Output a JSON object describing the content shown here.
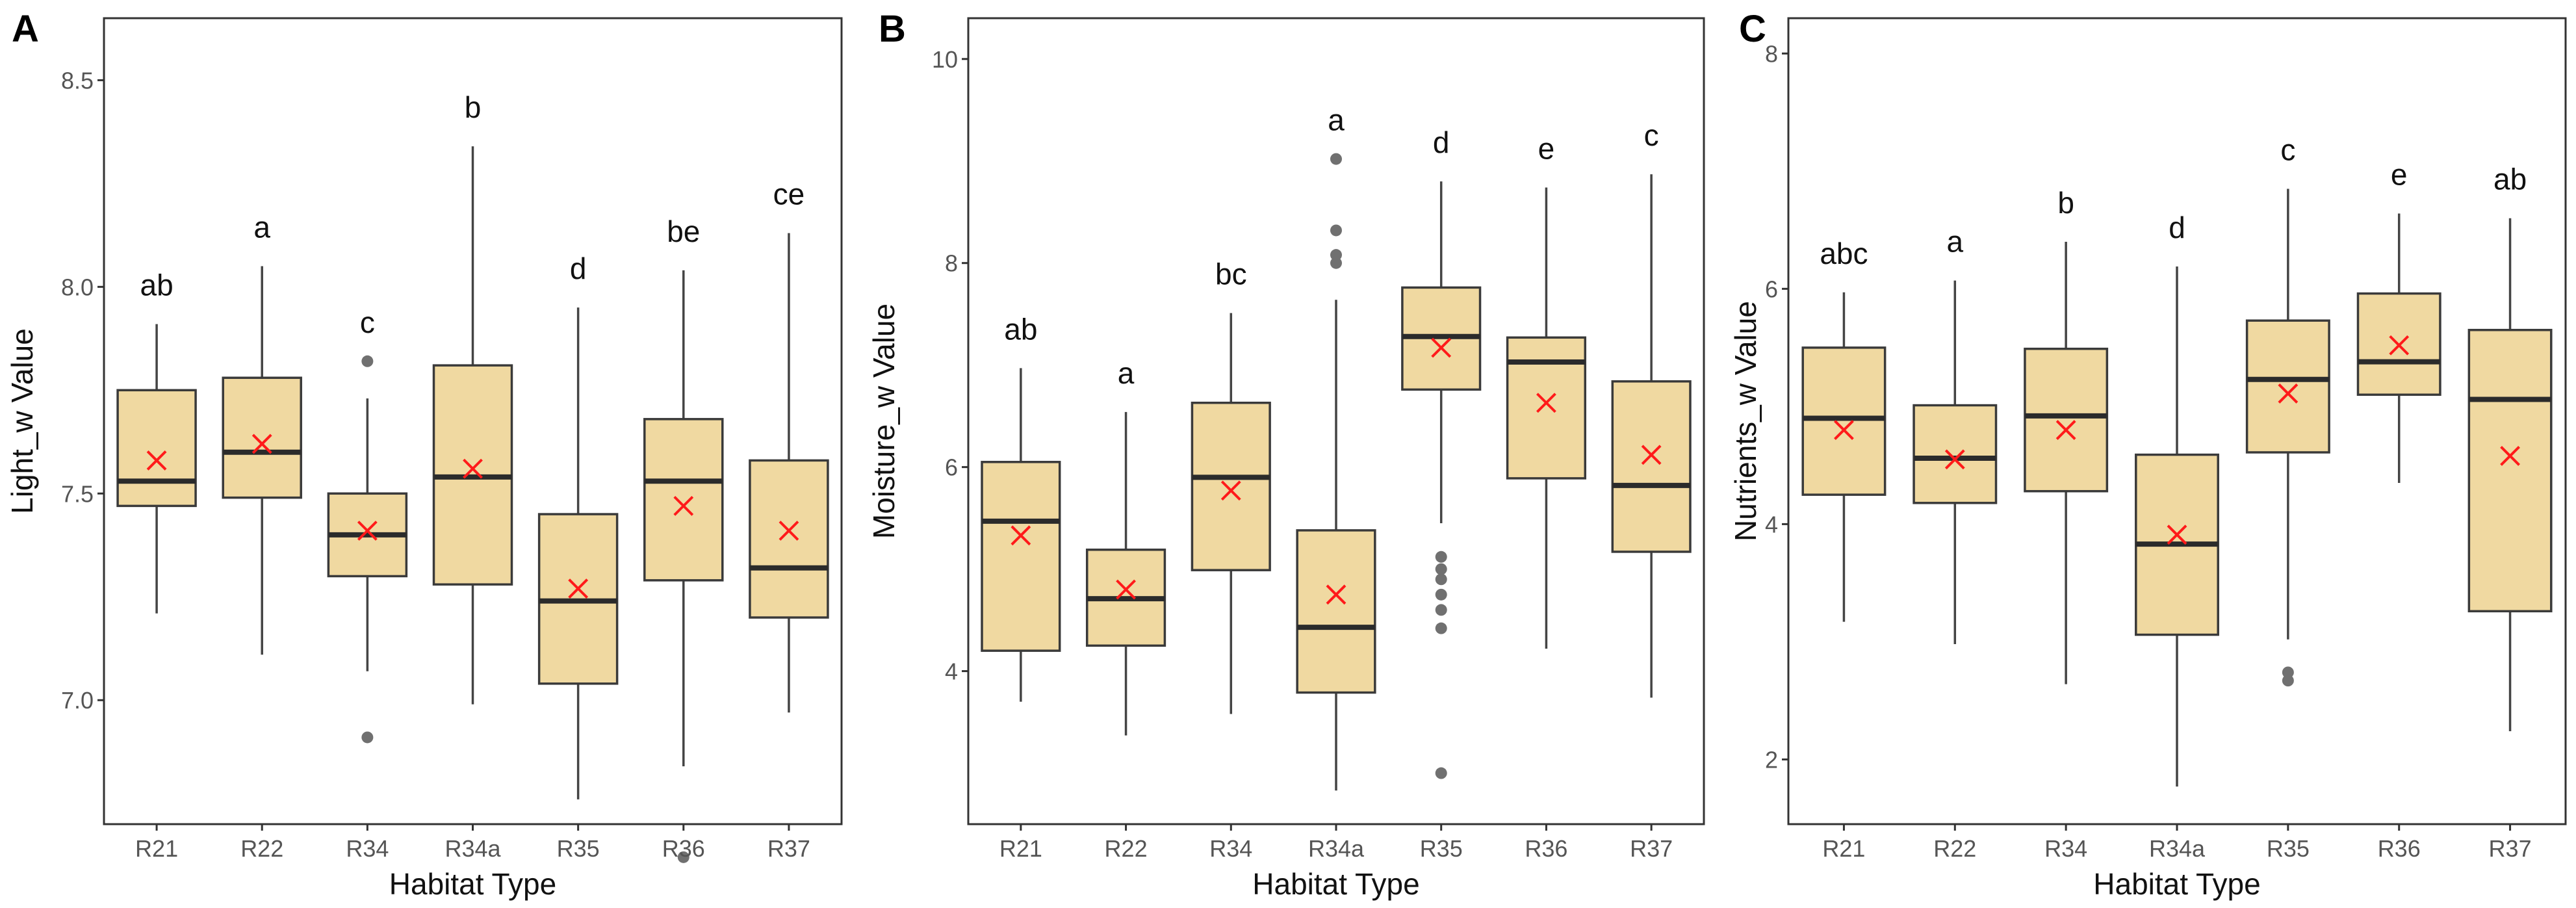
{
  "figure": {
    "box_fill": "#F0D9A1",
    "box_stroke": "#3a3a3a",
    "median_color": "#2b2b2b",
    "whisker_color": "#444444",
    "mean_marker_color": "#FF1A1A",
    "outlier_color": "#707070"
  },
  "chart_data": [
    {
      "type": "box",
      "panel_letter": "A",
      "xlabel": "Habitat Type",
      "ylabel": "Light_w Value",
      "ylim": [
        6.7,
        8.65
      ],
      "yticks": [
        7.0,
        7.5,
        8.0,
        8.5
      ],
      "ytick_labels": [
        "7.0",
        "7.5",
        "8.0",
        "8.5"
      ],
      "categories": [
        "R21",
        "R22",
        "R34",
        "R34a",
        "R35",
        "R36",
        "R37"
      ],
      "boxes": [
        {
          "whisker_low": 7.21,
          "q1": 7.47,
          "median": 7.53,
          "q3": 7.75,
          "whisker_high": 7.91,
          "mean": 7.58,
          "outliers": [],
          "letter": "ab"
        },
        {
          "whisker_low": 7.11,
          "q1": 7.49,
          "median": 7.6,
          "q3": 7.78,
          "whisker_high": 8.05,
          "mean": 7.62,
          "outliers": [],
          "letter": "a"
        },
        {
          "whisker_low": 7.07,
          "q1": 7.3,
          "median": 7.4,
          "q3": 7.5,
          "whisker_high": 7.73,
          "mean": 7.41,
          "outliers": [
            6.91,
            7.82
          ],
          "letter": "c"
        },
        {
          "whisker_low": 6.99,
          "q1": 7.28,
          "median": 7.54,
          "q3": 7.81,
          "whisker_high": 8.34,
          "mean": 7.56,
          "outliers": [],
          "letter": "b"
        },
        {
          "whisker_low": 6.76,
          "q1": 7.04,
          "median": 7.24,
          "q3": 7.45,
          "whisker_high": 7.95,
          "mean": 7.27,
          "outliers": [],
          "letter": "d"
        },
        {
          "whisker_low": 6.84,
          "q1": 7.29,
          "median": 7.53,
          "q3": 7.68,
          "whisker_high": 8.04,
          "mean": 7.47,
          "outliers": [
            6.62
          ],
          "letter": "be"
        },
        {
          "whisker_low": 6.97,
          "q1": 7.2,
          "median": 7.32,
          "q3": 7.58,
          "whisker_high": 8.13,
          "mean": 7.41,
          "outliers": [],
          "letter": "ce"
        }
      ]
    },
    {
      "type": "box",
      "panel_letter": "B",
      "xlabel": "Habitat Type",
      "ylabel": "Moisture_w Value",
      "ylim": [
        2.5,
        10.4
      ],
      "yticks": [
        4,
        6,
        8,
        10
      ],
      "ytick_labels": [
        "4",
        "6",
        "8",
        "10"
      ],
      "categories": [
        "R21",
        "R22",
        "R34",
        "R34a",
        "R35",
        "R36",
        "R37"
      ],
      "boxes": [
        {
          "whisker_low": 3.7,
          "q1": 4.2,
          "median": 5.47,
          "q3": 6.05,
          "whisker_high": 6.97,
          "mean": 5.33,
          "outliers": [],
          "letter": "ab"
        },
        {
          "whisker_low": 3.37,
          "q1": 4.25,
          "median": 4.71,
          "q3": 5.19,
          "whisker_high": 6.54,
          "mean": 4.8,
          "outliers": [],
          "letter": "a"
        },
        {
          "whisker_low": 3.58,
          "q1": 4.99,
          "median": 5.9,
          "q3": 6.63,
          "whisker_high": 7.51,
          "mean": 5.77,
          "outliers": [],
          "letter": "bc"
        },
        {
          "whisker_low": 2.83,
          "q1": 3.79,
          "median": 4.43,
          "q3": 5.38,
          "whisker_high": 7.64,
          "mean": 4.75,
          "outliers": [
            8.0,
            8.08,
            8.32,
            9.02
          ],
          "letter": "a"
        },
        {
          "whisker_low": 5.45,
          "q1": 6.76,
          "median": 7.28,
          "q3": 7.76,
          "whisker_high": 8.8,
          "mean": 7.17,
          "outliers": [
            3.0,
            4.42,
            4.6,
            4.75,
            4.9,
            5.0,
            5.12
          ],
          "letter": "d"
        },
        {
          "whisker_low": 4.22,
          "q1": 5.89,
          "median": 7.03,
          "q3": 7.27,
          "whisker_high": 8.74,
          "mean": 6.63,
          "outliers": [],
          "letter": "e"
        },
        {
          "whisker_low": 3.74,
          "q1": 5.17,
          "median": 5.82,
          "q3": 6.84,
          "whisker_high": 8.87,
          "mean": 6.12,
          "outliers": [],
          "letter": "c"
        }
      ]
    },
    {
      "type": "box",
      "panel_letter": "C",
      "xlabel": "Habitat Type",
      "ylabel": "Nutrients_w Value",
      "ylim": [
        1.45,
        8.3
      ],
      "yticks": [
        2,
        4,
        6,
        8
      ],
      "ytick_labels": [
        "2",
        "4",
        "6",
        "8"
      ],
      "categories": [
        "R21",
        "R22",
        "R34",
        "R34a",
        "R35",
        "R36",
        "R37"
      ],
      "boxes": [
        {
          "whisker_low": 3.17,
          "q1": 4.25,
          "median": 4.9,
          "q3": 5.5,
          "whisker_high": 5.97,
          "mean": 4.8,
          "outliers": [],
          "letter": "abc"
        },
        {
          "whisker_low": 2.98,
          "q1": 4.18,
          "median": 4.56,
          "q3": 5.01,
          "whisker_high": 6.07,
          "mean": 4.55,
          "outliers": [],
          "letter": "a"
        },
        {
          "whisker_low": 2.64,
          "q1": 4.28,
          "median": 4.92,
          "q3": 5.49,
          "whisker_high": 6.4,
          "mean": 4.8,
          "outliers": [],
          "letter": "b"
        },
        {
          "whisker_low": 1.77,
          "q1": 3.06,
          "median": 3.83,
          "q3": 4.59,
          "whisker_high": 6.19,
          "mean": 3.91,
          "outliers": [],
          "letter": "d"
        },
        {
          "whisker_low": 3.02,
          "q1": 4.61,
          "median": 5.23,
          "q3": 5.73,
          "whisker_high": 6.85,
          "mean": 5.11,
          "outliers": [
            2.67,
            2.74
          ],
          "letter": "c"
        },
        {
          "whisker_low": 4.35,
          "q1": 5.1,
          "median": 5.38,
          "q3": 5.96,
          "whisker_high": 6.64,
          "mean": 5.52,
          "outliers": [],
          "letter": "e"
        },
        {
          "whisker_low": 2.24,
          "q1": 3.26,
          "median": 5.06,
          "q3": 5.65,
          "whisker_high": 6.6,
          "mean": 4.58,
          "outliers": [],
          "letter": "ab"
        }
      ]
    }
  ]
}
